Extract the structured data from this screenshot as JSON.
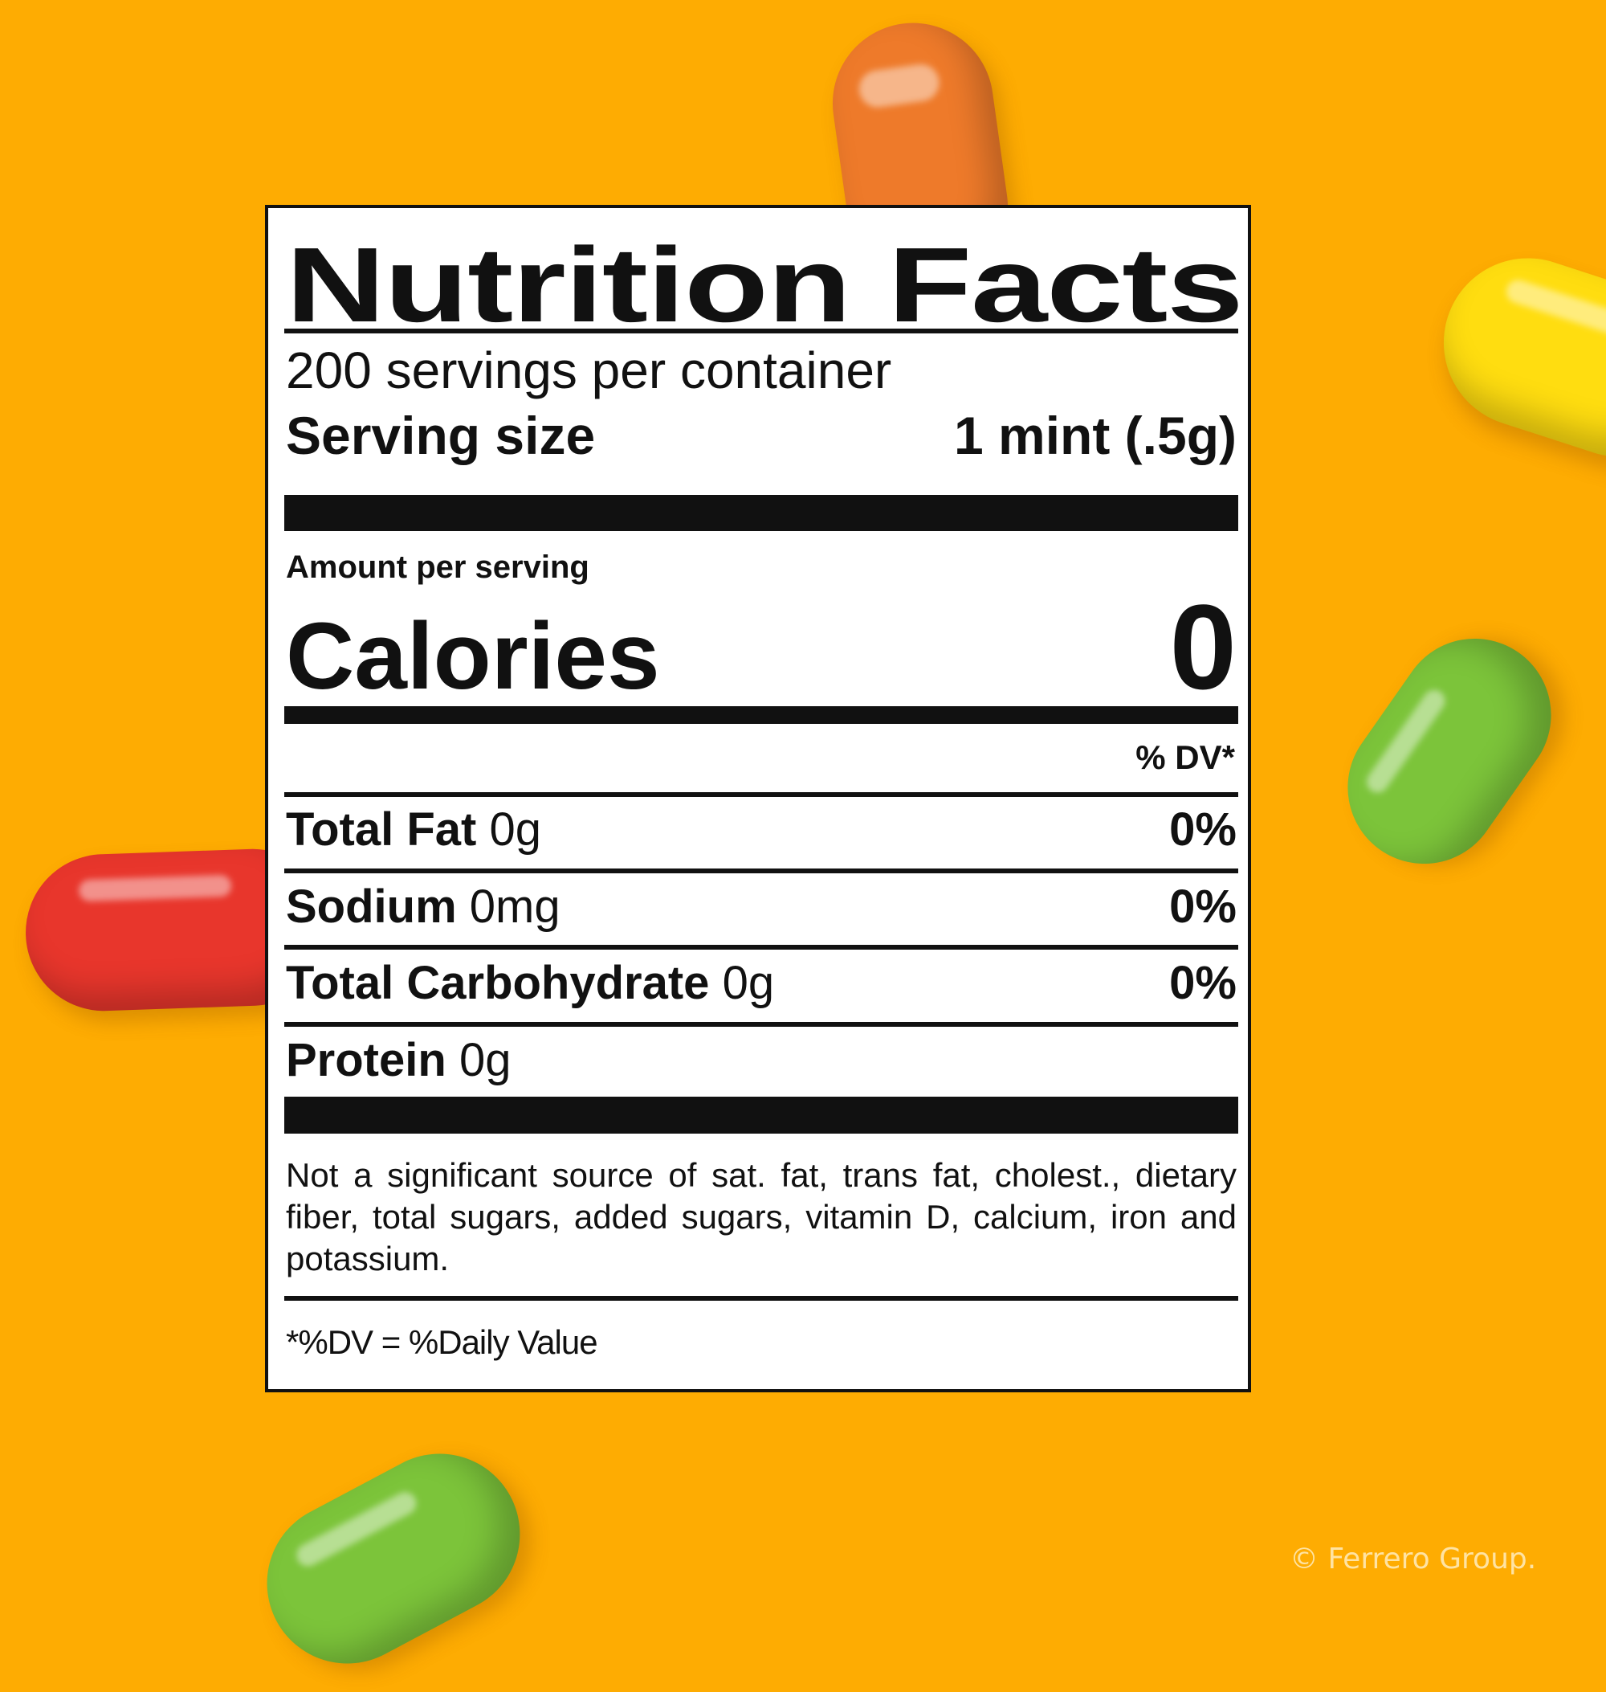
{
  "colors": {
    "background": "#FEAC02",
    "label_background": "#FFFFFF",
    "text": "#111111",
    "watermark": "#FFE3A3"
  },
  "candies": [
    {
      "color": "#EE7A2A",
      "name": "orange-mint"
    },
    {
      "color": "#FFDD10",
      "name": "yellow-mint"
    },
    {
      "color": "#7CC43A",
      "name": "green-mint"
    },
    {
      "color": "#E8362C",
      "name": "red-mint"
    },
    {
      "color": "#7CC43A",
      "name": "green-mint"
    }
  ],
  "label": {
    "title": "Nutrition Facts",
    "servings_per_container": "200 servings per container",
    "serving_size_label": "Serving size",
    "serving_size_value": "1 mint (.5g)",
    "amount_per_serving": "Amount per serving",
    "calories_label": "Calories",
    "calories_value": "0",
    "dv_header": "% DV*",
    "nutrients": [
      {
        "name": "Total Fat",
        "amount": "0g",
        "dv": "0%"
      },
      {
        "name": "Sodium",
        "amount": "0mg",
        "dv": "0%"
      },
      {
        "name": "Total Carbohydrate",
        "amount": "0g",
        "dv": "0%"
      },
      {
        "name": "Protein",
        "amount": "0g",
        "dv": ""
      }
    ],
    "footnote": "Not a significant source of sat. fat, trans fat, cholest., dietary fiber, total sugars, added sugars, vitamin D, calcium, iron and potassium.",
    "dv_definition": "*%DV = %Daily Value"
  },
  "copyright": "© Ferrero Group."
}
